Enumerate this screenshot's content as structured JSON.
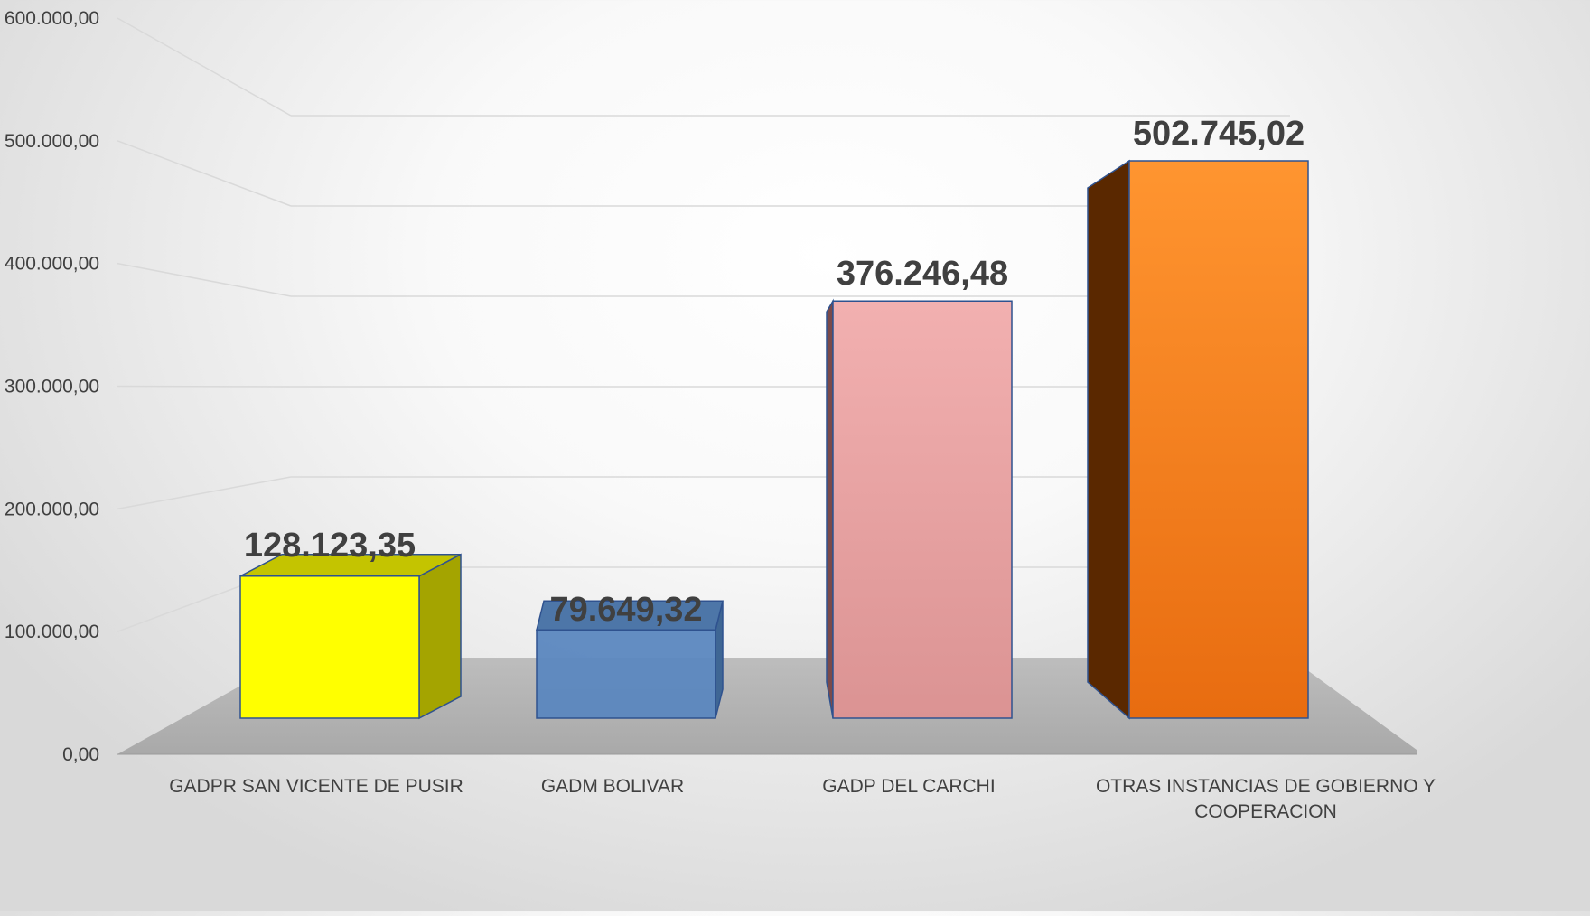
{
  "chart_data": {
    "type": "bar",
    "style": "3d-column",
    "title": "",
    "xlabel": "",
    "ylabel": "",
    "ylim": [
      0,
      600000
    ],
    "y_ticks": [
      "0,00",
      "100.000,00",
      "200.000,00",
      "300.000,00",
      "400.000,00",
      "500.000,00",
      "600.000,00"
    ],
    "y_tick_values": [
      0,
      100000,
      200000,
      300000,
      400000,
      500000,
      600000
    ],
    "grid": true,
    "legend": "none",
    "categories": [
      [
        "GADPR SAN VICENTE DE PUSIR"
      ],
      [
        "GADM BOLIVAR"
      ],
      [
        "GADP DEL CARCHI"
      ],
      [
        "OTRAS INSTANCIAS DE GOBIERNO Y",
        "COOPERACION"
      ]
    ],
    "values": [
      128123.35,
      79649.32,
      376246.48,
      502745.02
    ],
    "value_labels": [
      "128.123,35",
      "79.649,32",
      "376.246,48",
      "502.745,02"
    ],
    "colors": {
      "bars": [
        "#ffff00",
        "#5b87bf",
        "#e7a5a5",
        "#f5841c"
      ],
      "bar_sides": [
        "#a4a400",
        "#3f6694",
        "#7a4a4a",
        "#5a2800"
      ],
      "bar_tops": [
        "#c4c400",
        "#4d76a8",
        "#c08888",
        "#7a3a00"
      ],
      "floor": "#b8b8b8",
      "gridline": "#d9d9d9",
      "text": "#404040"
    }
  }
}
